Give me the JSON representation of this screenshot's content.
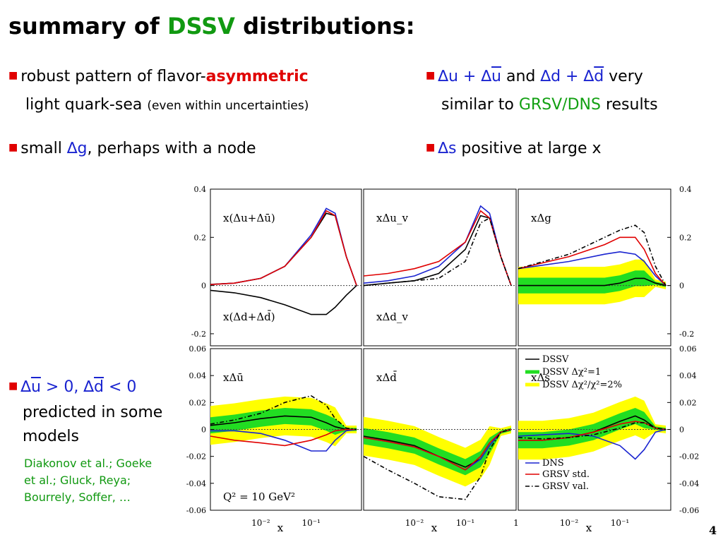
{
  "title": {
    "prefix": "summary of ",
    "highlight": "DSSV",
    "suffix": " distributions:"
  },
  "bullets": {
    "b1_line1": "robust pattern of flavor-",
    "b1_red": "asymmetric",
    "b1_line2": "light quark-sea ",
    "b1_small": "(even within uncertainties)",
    "b2_pre": "small ",
    "b2_blue": "∆g",
    "b2_post": ", perhaps with a node",
    "b3_u": "∆u + ∆",
    "b3_ubar": "u",
    "b3_and": "  and  ",
    "b3_d": "∆d + ∆",
    "b3_dbar": "d",
    "b3_very": " very",
    "b3_line2": "similar to ",
    "b3_green": "GRSV/DNS",
    "b3_results": " results",
    "b4_blue": "∆s",
    "b4_post": " positive at large x",
    "b5_p1": "∆",
    "b5_ubar": "u",
    "b5_p2": " > 0, ∆",
    "b5_dbar": "d",
    "b5_p3": " < 0",
    "b5_line2": "predicted in some",
    "b5_line3": "models",
    "cite1": "Diakonov et al.; Goeke",
    "cite2": "et al.;  Gluck, Reya;",
    "cite3": "Bourrely, Soffer, …"
  },
  "page_number": "4",
  "colors": {
    "dssv": "#000000",
    "chi1": "#22dd22",
    "chi2": "#ffff00",
    "dns": "#1a24d0",
    "grsv_std": "#e00000",
    "grsv_val": "#000000",
    "title_highlight": "#119911"
  },
  "chart_data": [
    {
      "type": "line",
      "panel": "top-left",
      "label": "x(Δu+Δū)",
      "label2": "x(Δd+Δd̄)",
      "yticks": [
        "0.4",
        "0.2",
        "0",
        "-0.2"
      ],
      "ylim": [
        -0.25,
        0.4
      ],
      "xscale": "log",
      "xlim": [
        0.001,
        1
      ],
      "series": [
        {
          "name": "DSSV",
          "x": [
            0.001,
            0.003,
            0.01,
            0.03,
            0.1,
            0.2,
            0.3,
            0.5,
            0.8
          ],
          "y": [
            0.005,
            0.01,
            0.03,
            0.08,
            0.2,
            0.3,
            0.29,
            0.12,
            0.0
          ]
        },
        {
          "name": "DNS",
          "x": [
            0.001,
            0.003,
            0.01,
            0.03,
            0.1,
            0.2,
            0.3,
            0.5,
            0.8
          ],
          "y": [
            0.004,
            0.01,
            0.03,
            0.08,
            0.21,
            0.32,
            0.3,
            0.12,
            0.0
          ]
        },
        {
          "name": "GRSV std.",
          "x": [
            0.001,
            0.003,
            0.01,
            0.03,
            0.1,
            0.2,
            0.3,
            0.5,
            0.8
          ],
          "y": [
            0.004,
            0.01,
            0.03,
            0.08,
            0.2,
            0.31,
            0.29,
            0.12,
            0.0
          ]
        },
        {
          "name": "DSSV d",
          "x": [
            0.001,
            0.003,
            0.01,
            0.03,
            0.1,
            0.2,
            0.3,
            0.5,
            0.8
          ],
          "y": [
            -0.02,
            -0.03,
            -0.05,
            -0.08,
            -0.12,
            -0.12,
            -0.09,
            -0.04,
            0.0
          ]
        }
      ]
    },
    {
      "type": "line",
      "panel": "top-middle",
      "label": "xΔu_v",
      "label2": "xΔd_v",
      "ylim": [
        -0.25,
        0.4
      ],
      "xscale": "log",
      "xlim": [
        0.001,
        1
      ],
      "series": [
        {
          "name": "DSSV",
          "x": [
            0.001,
            0.003,
            0.01,
            0.03,
            0.1,
            0.2,
            0.3,
            0.5,
            0.8
          ],
          "y": [
            0.0,
            0.01,
            0.02,
            0.05,
            0.15,
            0.29,
            0.28,
            0.12,
            0.0
          ]
        },
        {
          "name": "DNS",
          "x": [
            0.001,
            0.003,
            0.01,
            0.03,
            0.1,
            0.2,
            0.3,
            0.5,
            0.8
          ],
          "y": [
            0.01,
            0.02,
            0.04,
            0.08,
            0.18,
            0.33,
            0.3,
            0.12,
            0.0
          ]
        },
        {
          "name": "GRSV std.",
          "x": [
            0.001,
            0.003,
            0.01,
            0.03,
            0.1,
            0.2,
            0.3,
            0.5,
            0.8
          ],
          "y": [
            0.04,
            0.05,
            0.07,
            0.1,
            0.18,
            0.31,
            0.28,
            0.12,
            0.0
          ]
        },
        {
          "name": "GRSV val.",
          "x": [
            0.001,
            0.003,
            0.01,
            0.03,
            0.1,
            0.2,
            0.3,
            0.5,
            0.8
          ],
          "y": [
            0.0,
            0.01,
            0.02,
            0.03,
            0.1,
            0.26,
            0.28,
            0.12,
            0.0
          ]
        }
      ]
    },
    {
      "type": "line",
      "panel": "top-right",
      "label": "xΔg",
      "yticks": [
        "0.4",
        "0.2",
        "0",
        "-0.2"
      ],
      "ylim": [
        -0.25,
        0.4
      ],
      "xscale": "log",
      "xlim": [
        0.001,
        1
      ],
      "series": [
        {
          "name": "DSSV",
          "x": [
            0.001,
            0.01,
            0.05,
            0.1,
            0.2,
            0.3,
            0.5,
            0.8
          ],
          "y": [
            0.0,
            0.0,
            0.0,
            0.01,
            0.03,
            0.03,
            0.01,
            0.0
          ]
        },
        {
          "name": "DNS",
          "x": [
            0.001,
            0.01,
            0.05,
            0.1,
            0.2,
            0.3,
            0.5,
            0.8
          ],
          "y": [
            0.07,
            0.1,
            0.13,
            0.14,
            0.13,
            0.1,
            0.04,
            0.0
          ]
        },
        {
          "name": "GRSV std.",
          "x": [
            0.001,
            0.01,
            0.05,
            0.1,
            0.2,
            0.3,
            0.5,
            0.8
          ],
          "y": [
            0.07,
            0.12,
            0.17,
            0.2,
            0.2,
            0.15,
            0.05,
            0.0
          ]
        },
        {
          "name": "GRSV val.",
          "x": [
            0.001,
            0.01,
            0.05,
            0.1,
            0.2,
            0.3,
            0.5,
            0.8
          ],
          "y": [
            0.07,
            0.13,
            0.2,
            0.23,
            0.25,
            0.22,
            0.08,
            0.0
          ]
        }
      ]
    },
    {
      "type": "line",
      "panel": "bottom-left",
      "label": "xΔū",
      "annotation": "Q² = 10 GeV²",
      "yticks": [
        "0.06",
        "0.04",
        "0.02",
        "0",
        "-0.02",
        "-0.04",
        "-0.06"
      ],
      "ylim": [
        -0.06,
        0.06
      ],
      "xscale": "log",
      "xlim": [
        0.001,
        1
      ],
      "xticks": [
        "10⁻²",
        "10⁻¹"
      ],
      "xlabel": "x",
      "series": [
        {
          "name": "DSSV",
          "x": [
            0.001,
            0.003,
            0.01,
            0.03,
            0.1,
            0.2,
            0.3,
            0.5,
            0.8
          ],
          "y": [
            0.003,
            0.005,
            0.008,
            0.01,
            0.009,
            0.005,
            0.002,
            0.0,
            0.0
          ]
        },
        {
          "name": "DNS",
          "x": [
            0.001,
            0.003,
            0.01,
            0.03,
            0.1,
            0.2,
            0.3,
            0.5,
            0.8
          ],
          "y": [
            -0.001,
            -0.001,
            -0.003,
            -0.008,
            -0.016,
            -0.016,
            -0.008,
            -0.001,
            0.0
          ]
        },
        {
          "name": "GRSV std.",
          "x": [
            0.001,
            0.003,
            0.01,
            0.03,
            0.1,
            0.2,
            0.3,
            0.5,
            0.8
          ],
          "y": [
            -0.005,
            -0.008,
            -0.01,
            -0.012,
            -0.008,
            -0.004,
            -0.001,
            0.0,
            0.0
          ]
        },
        {
          "name": "GRSV val.",
          "x": [
            0.001,
            0.003,
            0.01,
            0.03,
            0.1,
            0.2,
            0.3,
            0.5,
            0.8
          ],
          "y": [
            0.004,
            0.007,
            0.012,
            0.02,
            0.025,
            0.018,
            0.008,
            0.001,
            0.0
          ]
        }
      ]
    },
    {
      "type": "line",
      "panel": "bottom-middle",
      "label": "xΔd̄",
      "ylim": [
        -0.06,
        0.06
      ],
      "xscale": "log",
      "xlim": [
        0.001,
        1
      ],
      "xticks": [
        "10⁻²",
        "10⁻¹",
        "1"
      ],
      "xlabel": "x",
      "series": [
        {
          "name": "DSSV",
          "x": [
            0.001,
            0.003,
            0.01,
            0.03,
            0.1,
            0.2,
            0.3,
            0.5,
            0.8
          ],
          "y": [
            -0.005,
            -0.008,
            -0.012,
            -0.02,
            -0.028,
            -0.022,
            -0.012,
            -0.002,
            0.0
          ]
        },
        {
          "name": "DNS",
          "x": [
            0.001,
            0.003,
            0.01,
            0.03,
            0.1,
            0.2,
            0.3,
            0.5,
            0.8
          ],
          "y": [
            -0.006,
            -0.009,
            -0.013,
            -0.02,
            -0.03,
            -0.022,
            -0.012,
            -0.002,
            0.0
          ]
        },
        {
          "name": "GRSV std.",
          "x": [
            0.001,
            0.003,
            0.01,
            0.03,
            0.1,
            0.2,
            0.3,
            0.5,
            0.8
          ],
          "y": [
            -0.006,
            -0.009,
            -0.013,
            -0.02,
            -0.03,
            -0.02,
            -0.01,
            -0.002,
            0.0
          ]
        },
        {
          "name": "GRSV val.",
          "x": [
            0.001,
            0.003,
            0.01,
            0.03,
            0.1,
            0.2,
            0.3,
            0.5,
            0.8
          ],
          "y": [
            -0.02,
            -0.03,
            -0.04,
            -0.05,
            -0.052,
            -0.035,
            -0.015,
            -0.002,
            0.0
          ]
        }
      ]
    },
    {
      "type": "line",
      "panel": "bottom-right",
      "label": "xΔs",
      "yticks": [
        "0.06",
        "0.04",
        "0.02",
        "0",
        "-0.02",
        "-0.04",
        "-0.06"
      ],
      "ylim": [
        -0.06,
        0.06
      ],
      "xscale": "log",
      "xlim": [
        0.001,
        1
      ],
      "xticks": [
        "10⁻²",
        "10⁻¹"
      ],
      "xlabel": "x",
      "legend": [
        "DSSV",
        "DSSV Δχ²=1",
        "DSSV Δχ²/χ²=2%",
        "DNS",
        "GRSV std.",
        "GRSV val."
      ],
      "series": [
        {
          "name": "DSSV",
          "x": [
            0.001,
            0.003,
            0.01,
            0.03,
            0.1,
            0.2,
            0.3,
            0.5,
            0.8
          ],
          "y": [
            -0.008,
            -0.008,
            -0.006,
            -0.002,
            0.006,
            0.01,
            0.007,
            0.001,
            0.0
          ]
        },
        {
          "name": "DNS",
          "x": [
            0.001,
            0.003,
            0.01,
            0.03,
            0.1,
            0.2,
            0.3,
            0.5,
            0.8
          ],
          "y": [
            -0.005,
            -0.004,
            -0.003,
            -0.005,
            -0.012,
            -0.022,
            -0.015,
            -0.002,
            0.0
          ]
        },
        {
          "name": "GRSV std.",
          "x": [
            0.001,
            0.003,
            0.01,
            0.03,
            0.1,
            0.2,
            0.3,
            0.5,
            0.8
          ],
          "y": [
            -0.008,
            -0.008,
            -0.006,
            -0.002,
            0.004,
            0.006,
            0.005,
            0.001,
            0.0
          ]
        },
        {
          "name": "GRSV val.",
          "x": [
            0.001,
            0.003,
            0.01,
            0.03,
            0.1,
            0.2,
            0.3,
            0.5,
            0.8
          ],
          "y": [
            -0.006,
            -0.007,
            -0.006,
            -0.004,
            0.001,
            0.005,
            0.005,
            0.001,
            0.0
          ]
        }
      ]
    }
  ]
}
